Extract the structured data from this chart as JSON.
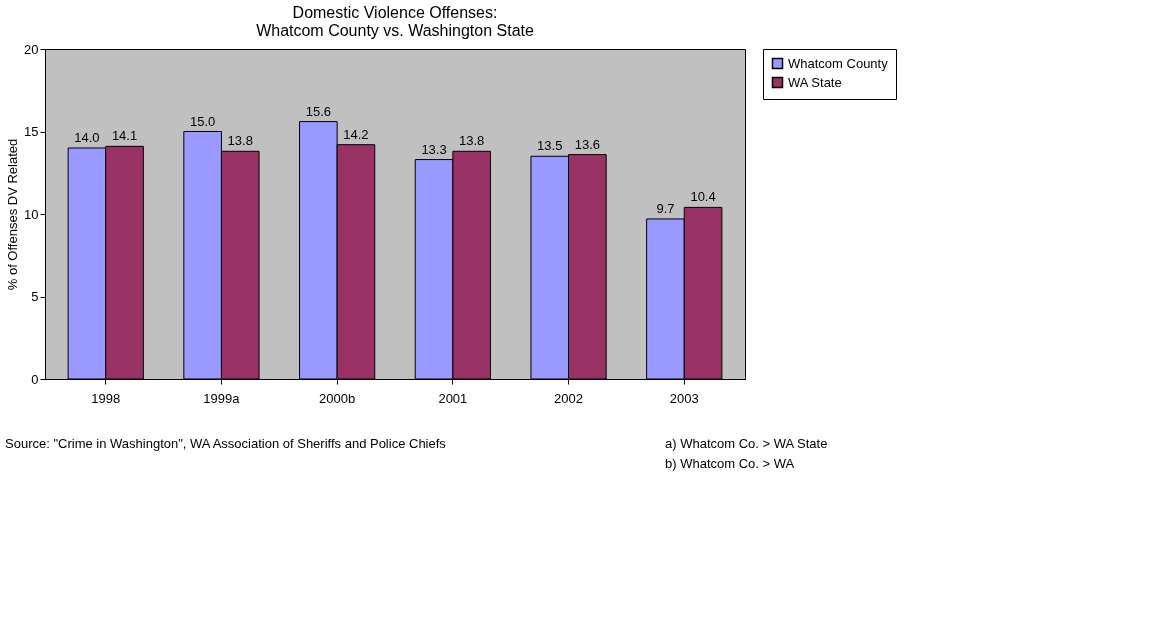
{
  "chart_data": {
    "type": "bar",
    "title": "Domestic Violence Offenses:\nWhatcom County vs. Washington State",
    "ylabel": "% of Offenses DV Related",
    "categories": [
      "1998",
      "1999a",
      "2000b",
      "2001",
      "2002",
      "2003"
    ],
    "series": [
      {
        "name": "Whatcom County",
        "color": "#9999ff",
        "values": [
          14.0,
          15.0,
          15.6,
          13.3,
          13.5,
          9.7
        ],
        "value_labels": [
          "14.0",
          "15.0",
          "15.6",
          "13.3",
          "13.5",
          "9.7"
        ]
      },
      {
        "name": "WA State",
        "color": "#993366",
        "values": [
          14.1,
          13.8,
          14.2,
          13.8,
          13.6,
          10.4
        ],
        "value_labels": [
          "14.1",
          "13.8",
          "14.2",
          "13.8",
          "13.6",
          "10.4"
        ]
      }
    ],
    "ylim": [
      0,
      20
    ],
    "yticks": [
      0,
      5,
      10,
      15,
      20
    ],
    "grid": false,
    "legend": "right",
    "annotations": [
      "Source:  \"Crime in Washington\", WA Association of Sheriffs and Police Chiefs",
      "a) Whatcom Co. > WA State",
      "b) Whatcom Co. > WA"
    ]
  }
}
